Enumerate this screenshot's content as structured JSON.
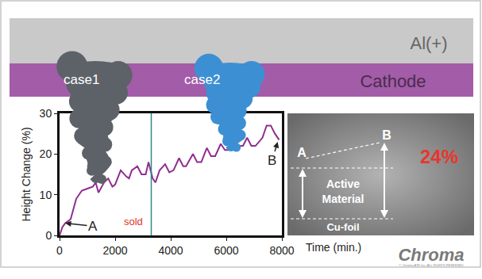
{
  "chart_data": {
    "type": "line",
    "x_label": "Time (min.)",
    "y_label": "Height Change (%)",
    "x": [
      0,
      100,
      200,
      400,
      600,
      800,
      1000,
      1200,
      1300,
      1400,
      1600,
      1750,
      1900,
      2000,
      2200,
      2400,
      2500,
      2600,
      2800,
      2950,
      3100,
      3200,
      3350,
      3450,
      3600,
      3800,
      3950,
      4100,
      4300,
      4450,
      4550,
      4800,
      4950,
      5100,
      5300,
      5450,
      5600,
      5800,
      5950,
      6100,
      6300,
      6450,
      6600,
      6750,
      6900,
      7050,
      7300,
      7450,
      7600,
      7750,
      7900
    ],
    "values": [
      0,
      2,
      3,
      4,
      9,
      11,
      11.5,
      12,
      13,
      10.5,
      13,
      14,
      12,
      12.5,
      16,
      14.5,
      14,
      16,
      17,
      15,
      15,
      18,
      14,
      13,
      16,
      17.5,
      15.5,
      16,
      19,
      17,
      17,
      20,
      18,
      18,
      21.5,
      19.5,
      19.5,
      22.5,
      21,
      21,
      23,
      22,
      22,
      24,
      22,
      22,
      24,
      27,
      27,
      25,
      23.5
    ],
    "color": "#8e2e8f",
    "xlim": [
      0,
      8000
    ],
    "ylim": [
      0,
      30
    ],
    "xticks": [
      0,
      2000,
      4000,
      6000,
      8000
    ],
    "yticks": [
      0,
      10,
      20,
      30
    ],
    "grid": false,
    "annotations": [
      {
        "text": "A",
        "x": 1200,
        "y": 2.3,
        "arrow_x": 200,
        "arrow_y": 3
      },
      {
        "text": "B",
        "x": 7650,
        "y": 18.5,
        "arrow_x": 7850,
        "arrow_y": 23
      },
      {
        "text": "sold",
        "x": 2650,
        "y": 1.5,
        "color": "#e0342c"
      }
    ],
    "vlines": [
      3300
    ]
  },
  "diagram": {
    "layers": [
      "Al(+)",
      "Cathode"
    ],
    "plumes": [
      "case1",
      "case2"
    ],
    "inset": {
      "point_a": "A",
      "point_b": "B",
      "material": "Active Material",
      "foil": "Cu-foil",
      "change": "24%"
    },
    "logo": "Chroma",
    "copyright": "© Chroma ATE Inc. ALL RIGHTS RESERVED"
  }
}
